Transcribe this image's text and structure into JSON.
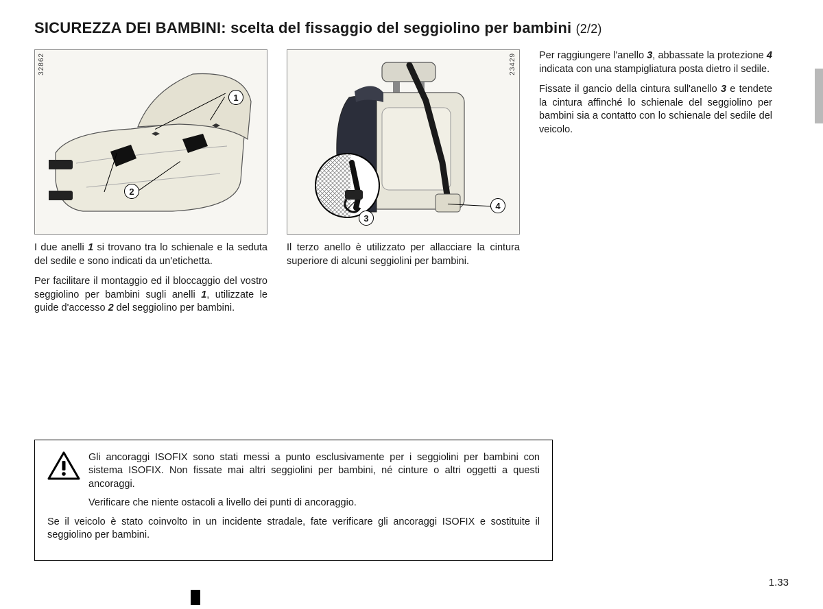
{
  "title_main": "SICUREZZA DEI BAMBINI:",
  "title_sub": " scelta del fissaggio del seggiolino per bambini ",
  "title_pagepart": "(2/2)",
  "fig1": {
    "id": "32862",
    "callouts": {
      "c1": "1",
      "c2": "2"
    },
    "caption1": "I due anelli <span class='bolditalnum'>1</span> si trovano tra lo schienale e la seduta del sedile e sono indicati da un'etichetta.",
    "caption2": "Per facilitare il montaggio ed il bloccaggio del vostro seggiolino per bambini sugli anelli <span class='bolditalnum'>1</span>, utilizzate le guide d'accesso <span class='bolditalnum'>2</span> del seggiolino per bambini."
  },
  "fig2": {
    "id": "23429",
    "callouts": {
      "c3": "3",
      "c4": "4"
    },
    "caption": "Il terzo anello è utilizzato per allacciare la cintura superiore di alcuni seggiolini per bambini."
  },
  "right": {
    "p1": "Per raggiungere l'anello <span class='bolditalnum'>3</span>, abbassate la protezione <span class='bolditalnum'>4</span> indicata con una stampigliatura posta dietro il sedile.",
    "p2": "Fissate il gancio della cintura sull'anello <span class='bolditalnum'>3</span> e tendete la cintura affinché lo schienale del seggiolino per bambini sia a contatto con lo schienale del sedile del veicolo."
  },
  "warning": {
    "p1": "Gli ancoraggi ISOFIX sono stati messi a punto esclusivamente per i seggiolini per bambini con sistema ISOFIX. Non fissate mai altri seggiolini per bambini, né cinture o altri oggetti a questi ancoraggi.",
    "p2": "Verificare che niente ostacoli a livello dei punti di ancoraggio.",
    "p3": "Se il veicolo è stato coinvolto in un incidente stradale, fate verificare gli ancoraggi ISOFIX e sostituite il seggiolino per bambini."
  },
  "page_number": "1.33"
}
